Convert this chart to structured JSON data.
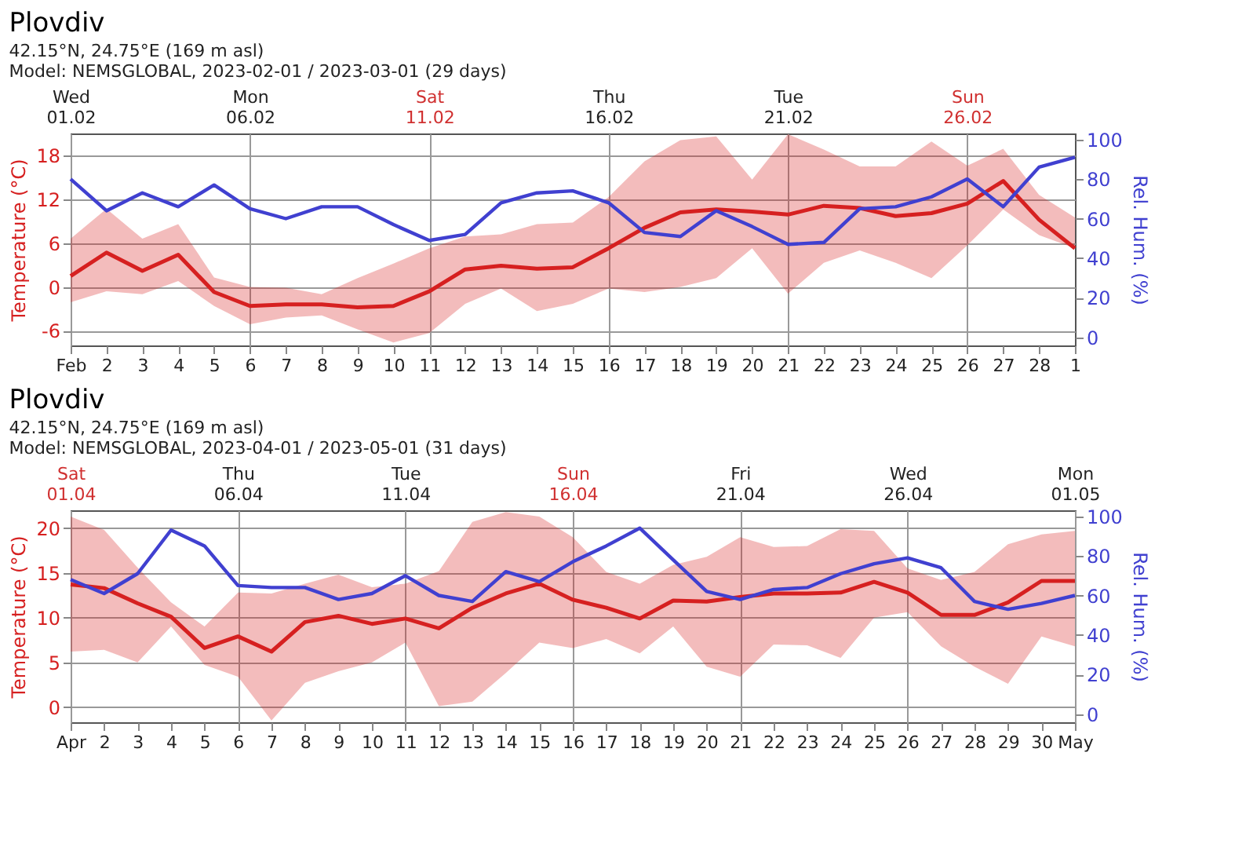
{
  "chart_data": [
    {
      "type": "line",
      "title": "Plovdiv",
      "subtitle": "42.15°N, 24.75°E (169 m asl)",
      "annotations": [
        "Model: NEMSGLOBAL, 2023-02-01 / 2023-03-01 (29 days)"
      ],
      "ylabel": "Temperature (°C)",
      "y2label": "Rel. Hum. (%)",
      "x": [
        "2023-02-01",
        "2023-02-02",
        "2023-02-03",
        "2023-02-04",
        "2023-02-05",
        "2023-02-06",
        "2023-02-07",
        "2023-02-08",
        "2023-02-09",
        "2023-02-10",
        "2023-02-11",
        "2023-02-12",
        "2023-02-13",
        "2023-02-14",
        "2023-02-15",
        "2023-02-16",
        "2023-02-17",
        "2023-02-18",
        "2023-02-19",
        "2023-02-20",
        "2023-02-21",
        "2023-02-22",
        "2023-02-23",
        "2023-02-24",
        "2023-02-25",
        "2023-02-26",
        "2023-02-27",
        "2023-02-28",
        "2023-03-01"
      ],
      "xlim": [
        "2023-02-01",
        "2023-03-01"
      ],
      "xticks": [
        {
          "value": "2023-02-01",
          "label": "Feb"
        },
        {
          "value": "2023-02-02",
          "label": "2"
        },
        {
          "value": "2023-02-03",
          "label": "3"
        },
        {
          "value": "2023-02-04",
          "label": "4"
        },
        {
          "value": "2023-02-05",
          "label": "5"
        },
        {
          "value": "2023-02-06",
          "label": "6"
        },
        {
          "value": "2023-02-07",
          "label": "7"
        },
        {
          "value": "2023-02-08",
          "label": "8"
        },
        {
          "value": "2023-02-09",
          "label": "9"
        },
        {
          "value": "2023-02-10",
          "label": "10"
        },
        {
          "value": "2023-02-11",
          "label": "11"
        },
        {
          "value": "2023-02-12",
          "label": "12"
        },
        {
          "value": "2023-02-13",
          "label": "13"
        },
        {
          "value": "2023-02-14",
          "label": "14"
        },
        {
          "value": "2023-02-15",
          "label": "15"
        },
        {
          "value": "2023-02-16",
          "label": "16"
        },
        {
          "value": "2023-02-17",
          "label": "17"
        },
        {
          "value": "2023-02-18",
          "label": "18"
        },
        {
          "value": "2023-02-19",
          "label": "19"
        },
        {
          "value": "2023-02-20",
          "label": "20"
        },
        {
          "value": "2023-02-21",
          "label": "21"
        },
        {
          "value": "2023-02-22",
          "label": "22"
        },
        {
          "value": "2023-02-23",
          "label": "23"
        },
        {
          "value": "2023-02-24",
          "label": "24"
        },
        {
          "value": "2023-02-25",
          "label": "25"
        },
        {
          "value": "2023-02-26",
          "label": "26"
        },
        {
          "value": "2023-02-27",
          "label": "27"
        },
        {
          "value": "2023-02-28",
          "label": "28"
        },
        {
          "value": "2023-03-01",
          "label": "1"
        }
      ],
      "x2lim": [
        "2023-02-01",
        "2023-03-01"
      ],
      "x2ticks": [
        {
          "value": "2023-02-01",
          "label": "Wed\n01.02"
        },
        {
          "value": "2023-02-06",
          "label": "Mon\n06.02"
        },
        {
          "value": "2023-02-11",
          "label": "Sat\n11.02"
        },
        {
          "value": "2023-02-16",
          "label": "Thu\n16.02"
        },
        {
          "value": "2023-02-21",
          "label": "Tue\n21.02"
        },
        {
          "value": "2023-02-26",
          "label": "Sun\n26.02"
        }
      ],
      "ylim": [
        -8,
        21
      ],
      "yticks": [
        -6,
        0,
        6,
        12,
        18
      ],
      "y2lim": [
        -4,
        103
      ],
      "y2ticks": [
        0,
        20,
        40,
        60,
        80,
        100
      ],
      "grid": true,
      "series": [
        {
          "color": "#d62020",
          "values": [
            1.5,
            4.7,
            2.2,
            4.4,
            -0.7,
            -2.6,
            -2.4,
            -2.4,
            -2.8,
            -2.6,
            -0.6,
            2.4,
            2.9,
            2.5,
            2.7,
            5.3,
            8.1,
            10.2,
            10.6,
            10.3,
            9.9,
            11.1,
            10.8,
            9.7,
            10.1,
            11.4,
            14.5,
            9.2,
            5.3
          ],
          "lower": [
            -2.1,
            -0.6,
            -1.0,
            0.8,
            -2.6,
            -5.1,
            -4.2,
            -3.9,
            -5.8,
            -7.6,
            -6.3,
            -2.3,
            -0.2,
            -3.3,
            -2.3,
            -0.2,
            -0.7,
            0,
            1.2,
            5.3,
            -0.9,
            3.3,
            5.0,
            3.3,
            1.2,
            5.7,
            10.6,
            7.1,
            5.3
          ],
          "upper": [
            6.6,
            10.7,
            6.6,
            8.6,
            1.3,
            0,
            -0.1,
            -1.0,
            1.2,
            3.2,
            5.3,
            6.9,
            7.2,
            8.6,
            8.8,
            12.3,
            17.2,
            20.1,
            20.6,
            14.7,
            20.9,
            18.8,
            16.5,
            16.5,
            19.9,
            16.6,
            18.9,
            12.6,
            9.5
          ]
        },
        {
          "color": "#4040d0",
          "axis": "y2",
          "values": [
            80,
            64,
            73,
            66,
            77,
            65,
            60,
            66,
            66,
            57,
            49,
            52,
            68,
            73,
            74,
            68,
            53,
            51,
            64,
            56,
            47,
            48,
            65,
            66,
            71,
            80,
            66,
            86,
            91
          ]
        }
      ]
    },
    {
      "type": "line",
      "title": "Plovdiv",
      "subtitle": "42.15°N, 24.75°E (169 m asl)",
      "annotations": [
        "Model: NEMSGLOBAL, 2023-04-01 / 2023-05-01 (31 days)"
      ],
      "ylabel": "Temperature (°C)",
      "y2label": "Rel. Hum. (%)",
      "x": [
        "2023-04-01",
        "2023-04-02",
        "2023-04-03",
        "2023-04-04",
        "2023-04-05",
        "2023-04-06",
        "2023-04-07",
        "2023-04-08",
        "2023-04-09",
        "2023-04-10",
        "2023-04-11",
        "2023-04-12",
        "2023-04-13",
        "2023-04-14",
        "2023-04-15",
        "2023-04-16",
        "2023-04-17",
        "2023-04-18",
        "2023-04-19",
        "2023-04-20",
        "2023-04-21",
        "2023-04-22",
        "2023-04-23",
        "2023-04-24",
        "2023-04-25",
        "2023-04-26",
        "2023-04-27",
        "2023-04-28",
        "2023-04-29",
        "2023-04-30",
        "2023-05-01"
      ],
      "xlim": [
        "2023-04-01",
        "2023-05-01"
      ],
      "xticks": [
        {
          "value": "2023-04-01",
          "label": "Apr"
        },
        {
          "value": "2023-04-02",
          "label": "2"
        },
        {
          "value": "2023-04-03",
          "label": "3"
        },
        {
          "value": "2023-04-04",
          "label": "4"
        },
        {
          "value": "2023-04-05",
          "label": "5"
        },
        {
          "value": "2023-04-06",
          "label": "6"
        },
        {
          "value": "2023-04-07",
          "label": "7"
        },
        {
          "value": "2023-04-08",
          "label": "8"
        },
        {
          "value": "2023-04-09",
          "label": "9"
        },
        {
          "value": "2023-04-10",
          "label": "10"
        },
        {
          "value": "2023-04-11",
          "label": "11"
        },
        {
          "value": "2023-04-12",
          "label": "12"
        },
        {
          "value": "2023-04-13",
          "label": "13"
        },
        {
          "value": "2023-04-14",
          "label": "14"
        },
        {
          "value": "2023-04-15",
          "label": "15"
        },
        {
          "value": "2023-04-16",
          "label": "16"
        },
        {
          "value": "2023-04-17",
          "label": "17"
        },
        {
          "value": "2023-04-18",
          "label": "18"
        },
        {
          "value": "2023-04-19",
          "label": "19"
        },
        {
          "value": "2023-04-20",
          "label": "20"
        },
        {
          "value": "2023-04-21",
          "label": "21"
        },
        {
          "value": "2023-04-22",
          "label": "22"
        },
        {
          "value": "2023-04-23",
          "label": "23"
        },
        {
          "value": "2023-04-24",
          "label": "24"
        },
        {
          "value": "2023-04-25",
          "label": "25"
        },
        {
          "value": "2023-04-26",
          "label": "26"
        },
        {
          "value": "2023-04-27",
          "label": "27"
        },
        {
          "value": "2023-04-28",
          "label": "28"
        },
        {
          "value": "2023-04-29",
          "label": "29"
        },
        {
          "value": "2023-04-30",
          "label": "30"
        },
        {
          "value": "2023-05-01",
          "label": "May"
        }
      ],
      "x2lim": [
        "2023-04-01",
        "2023-05-01"
      ],
      "x2ticks": [
        {
          "value": "2023-04-01",
          "label": "Sat\n01.04"
        },
        {
          "value": "2023-04-06",
          "label": "Thu\n06.04"
        },
        {
          "value": "2023-04-11",
          "label": "Tue\n11.04"
        },
        {
          "value": "2023-04-16",
          "label": "Sun\n16.04"
        },
        {
          "value": "2023-04-21",
          "label": "Fri\n21.04"
        },
        {
          "value": "2023-04-26",
          "label": "Wed\n26.04"
        },
        {
          "value": "2023-05-01",
          "label": "Mon\n01.05"
        }
      ],
      "ylim": [
        -1.7,
        22
      ],
      "yticks": [
        0,
        5,
        10,
        15,
        20
      ],
      "y2lim": [
        -4,
        103
      ],
      "y2ticks": [
        0,
        20,
        40,
        60,
        80,
        100
      ],
      "grid": true,
      "series": [
        {
          "color": "#d62020",
          "values": [
            13.7,
            13.3,
            11.6,
            10.1,
            6.6,
            7.9,
            6.2,
            9.5,
            10.2,
            9.3,
            9.9,
            8.8,
            11.1,
            12.7,
            13.8,
            12.0,
            11.1,
            9.9,
            11.9,
            11.8,
            12.3,
            12.7,
            12.7,
            12.8,
            14.0,
            12.8,
            10.3,
            10.3,
            11.7,
            14.1,
            14.1
          ],
          "lower": [
            6.2,
            6.4,
            5.0,
            9.0,
            4.7,
            3.4,
            -1.5,
            2.7,
            4.0,
            5.0,
            7.2,
            0.1,
            0.6,
            3.8,
            7.2,
            6.6,
            7.6,
            6.0,
            9.0,
            4.5,
            3.4,
            7.0,
            6.9,
            5.5,
            10.0,
            10.6,
            6.8,
            4.5,
            2.6,
            7.9,
            6.8
          ],
          "upper": [
            21.3,
            19.8,
            15.6,
            11.7,
            9.0,
            12.8,
            12.7,
            13.8,
            14.8,
            13.4,
            13.8,
            15.2,
            20.7,
            21.8,
            21.3,
            19.0,
            15.1,
            13.8,
            15.9,
            16.8,
            19.0,
            17.9,
            18.0,
            19.9,
            19.7,
            15.5,
            14.2,
            15.1,
            18.2,
            19.3,
            19.7
          ]
        },
        {
          "color": "#4040d0",
          "axis": "y2",
          "values": [
            68,
            61,
            71,
            93,
            85,
            65,
            64,
            64,
            58,
            61,
            70,
            60,
            57,
            72,
            67,
            77,
            85,
            94,
            78,
            62,
            58,
            63,
            64,
            71,
            76,
            79,
            74,
            57,
            53,
            56,
            60
          ]
        }
      ]
    }
  ]
}
